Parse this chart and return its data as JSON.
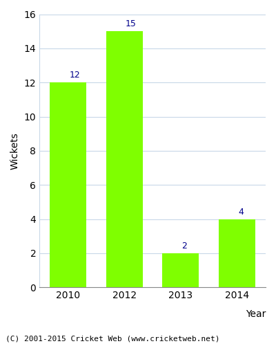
{
  "categories": [
    "2010",
    "2012",
    "2013",
    "2014"
  ],
  "values": [
    12,
    15,
    2,
    4
  ],
  "bar_color": "#7FFF00",
  "bar_edgecolor": "#7FFF00",
  "label_color": "#00008B",
  "ylabel": "Wickets",
  "xlabel": "Year",
  "ylim": [
    0,
    16
  ],
  "yticks": [
    0,
    2,
    4,
    6,
    8,
    10,
    12,
    14,
    16
  ],
  "footnote": "(C) 2001-2015 Cricket Web (www.cricketweb.net)",
  "background_color": "#ffffff",
  "grid_color": "#c8d8e8",
  "label_fontsize": 9,
  "axis_fontsize": 10,
  "footnote_fontsize": 8,
  "bar_width": 0.65
}
